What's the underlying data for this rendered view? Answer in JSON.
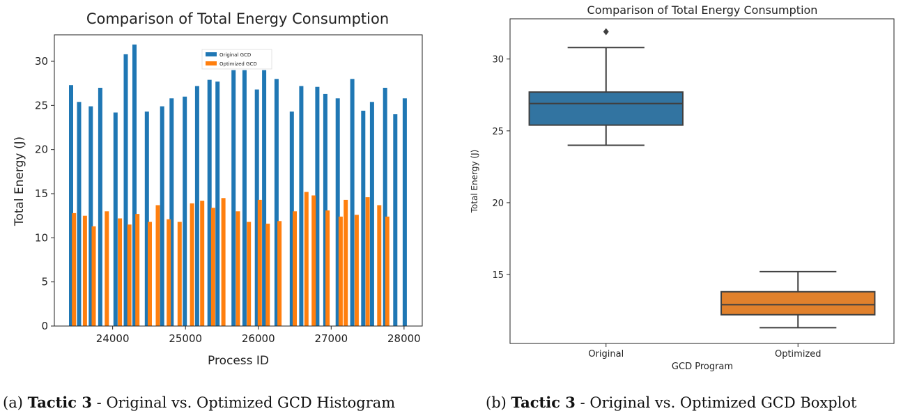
{
  "chart_data": [
    {
      "type": "bar",
      "title": "Comparison of Total Energy Consumption",
      "xlabel": "Process ID",
      "ylabel": "Total Energy (J)",
      "xlim": [
        23200,
        28250
      ],
      "ylim": [
        0,
        33
      ],
      "xticks": [
        "24000",
        "25000",
        "26000",
        "27000",
        "28000"
      ],
      "yticks": [
        "0",
        "5",
        "10",
        "15",
        "20",
        "25",
        "30"
      ],
      "legend_position": "upper-center",
      "series": [
        {
          "name": "Original GCD",
          "color": "#1f77b4",
          "points": [
            {
              "x": 23430,
              "y": 27.3
            },
            {
              "x": 23540,
              "y": 25.4
            },
            {
              "x": 23700,
              "y": 24.9
            },
            {
              "x": 23830,
              "y": 27.0
            },
            {
              "x": 24040,
              "y": 24.2
            },
            {
              "x": 24180,
              "y": 30.8
            },
            {
              "x": 24300,
              "y": 31.9
            },
            {
              "x": 24470,
              "y": 24.3
            },
            {
              "x": 24680,
              "y": 24.9
            },
            {
              "x": 24810,
              "y": 25.8
            },
            {
              "x": 24990,
              "y": 26.0
            },
            {
              "x": 25160,
              "y": 27.2
            },
            {
              "x": 25330,
              "y": 27.9
            },
            {
              "x": 25440,
              "y": 27.7
            },
            {
              "x": 25660,
              "y": 29.0
            },
            {
              "x": 25810,
              "y": 29.0
            },
            {
              "x": 25980,
              "y": 26.8
            },
            {
              "x": 26080,
              "y": 29.0
            },
            {
              "x": 26250,
              "y": 28.0
            },
            {
              "x": 26460,
              "y": 24.3
            },
            {
              "x": 26590,
              "y": 27.2
            },
            {
              "x": 26810,
              "y": 27.1
            },
            {
              "x": 26920,
              "y": 26.3
            },
            {
              "x": 27090,
              "y": 25.8
            },
            {
              "x": 27290,
              "y": 28.0
            },
            {
              "x": 27440,
              "y": 24.4
            },
            {
              "x": 27560,
              "y": 25.4
            },
            {
              "x": 27740,
              "y": 27.0
            },
            {
              "x": 27880,
              "y": 24.0
            },
            {
              "x": 28010,
              "y": 25.8
            }
          ]
        },
        {
          "name": "Optimized GCD",
          "color": "#ff7f0e",
          "points": [
            {
              "x": 23470,
              "y": 12.8
            },
            {
              "x": 23620,
              "y": 12.5
            },
            {
              "x": 23740,
              "y": 11.3
            },
            {
              "x": 23920,
              "y": 13.0
            },
            {
              "x": 24100,
              "y": 12.2
            },
            {
              "x": 24230,
              "y": 11.5
            },
            {
              "x": 24340,
              "y": 12.7
            },
            {
              "x": 24510,
              "y": 11.8
            },
            {
              "x": 24620,
              "y": 13.7
            },
            {
              "x": 24770,
              "y": 12.1
            },
            {
              "x": 24920,
              "y": 11.8
            },
            {
              "x": 25090,
              "y": 13.9
            },
            {
              "x": 25230,
              "y": 14.2
            },
            {
              "x": 25380,
              "y": 13.4
            },
            {
              "x": 25520,
              "y": 14.5
            },
            {
              "x": 25720,
              "y": 13.0
            },
            {
              "x": 25870,
              "y": 11.8
            },
            {
              "x": 26020,
              "y": 14.3
            },
            {
              "x": 26130,
              "y": 11.6
            },
            {
              "x": 26290,
              "y": 11.9
            },
            {
              "x": 26500,
              "y": 13.0
            },
            {
              "x": 26660,
              "y": 15.2
            },
            {
              "x": 26760,
              "y": 14.8
            },
            {
              "x": 26950,
              "y": 13.1
            },
            {
              "x": 27130,
              "y": 12.4
            },
            {
              "x": 27200,
              "y": 14.3
            },
            {
              "x": 27350,
              "y": 12.6
            },
            {
              "x": 27500,
              "y": 14.6
            },
            {
              "x": 27660,
              "y": 13.7
            },
            {
              "x": 27770,
              "y": 12.4
            }
          ]
        }
      ]
    },
    {
      "type": "box",
      "title": "Comparison of Total Energy Consumption",
      "xlabel": "GCD Program",
      "ylabel": "Total Energy (J)",
      "ylim": [
        10.2,
        32.8
      ],
      "yticks": [
        "15",
        "20",
        "25",
        "30"
      ],
      "categories": [
        "Original",
        "Optimized"
      ],
      "boxes": [
        {
          "category": "Original",
          "color": "#3274a1",
          "whisker_low": 24.0,
          "q1": 25.4,
          "median": 26.9,
          "q3": 27.7,
          "whisker_high": 30.8,
          "outliers": [
            31.9
          ]
        },
        {
          "category": "Optimized",
          "color": "#e1812c",
          "whisker_low": 11.3,
          "q1": 12.2,
          "median": 12.9,
          "q3": 13.8,
          "whisker_high": 15.2,
          "outliers": []
        }
      ]
    }
  ],
  "captions": [
    {
      "prefix": "(a) ",
      "bold": "Tactic 3",
      "rest": " - Original vs. Optimized GCD Histogram"
    },
    {
      "prefix": "(b) ",
      "bold": "Tactic 3",
      "rest": " - Original vs. Optimized GCD Boxplot"
    }
  ]
}
